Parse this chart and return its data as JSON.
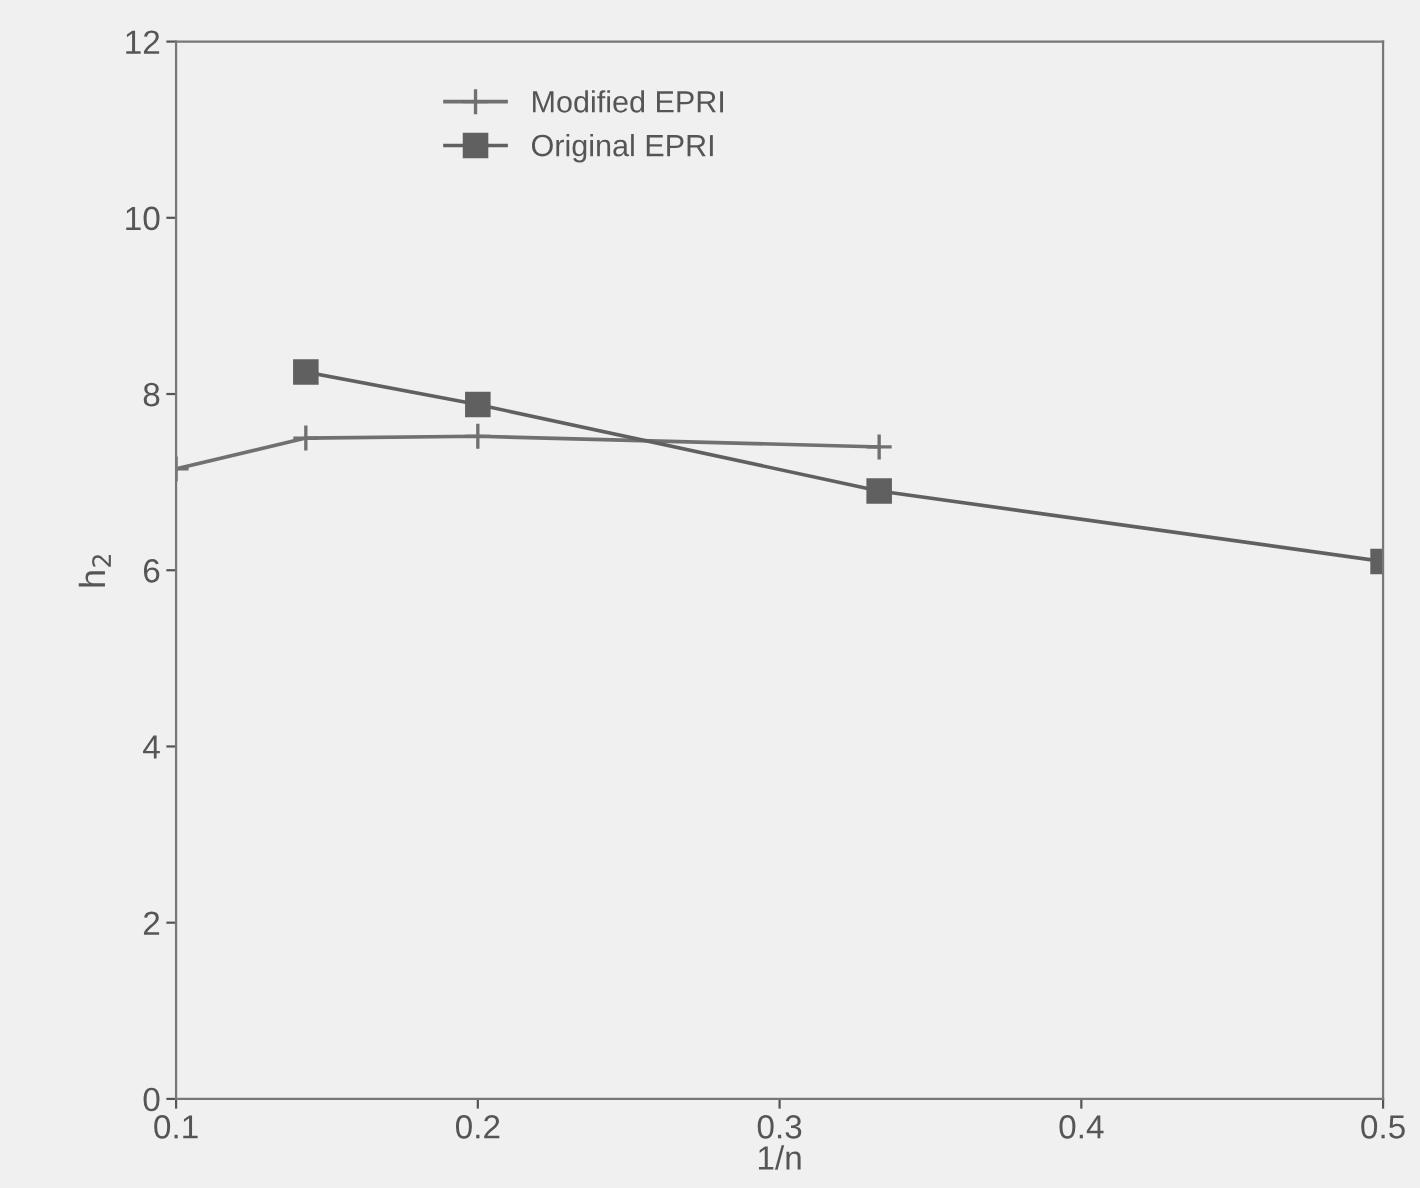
{
  "chart_data": {
    "type": "line",
    "xlabel": "1/n",
    "ylabel": "h$_{2}$",
    "series": [
      {
        "name": "Modified EPRI",
        "color": "#707070",
        "marker": "cross",
        "x": [
          0.1,
          0.143,
          0.2,
          0.333
        ],
        "values": [
          7.15,
          7.5,
          7.52,
          7.4
        ]
      },
      {
        "name": "Original EPRI",
        "color": "#606060",
        "marker": "square",
        "x": [
          0.143,
          0.2,
          0.333,
          0.5
        ],
        "values": [
          8.25,
          7.88,
          6.9,
          6.1
        ]
      }
    ],
    "xlim": [
      0.1,
      0.5
    ],
    "xticks": [
      0.1,
      0.2,
      0.3,
      0.4,
      0.5
    ],
    "ylim": [
      0,
      12
    ],
    "yticks": [
      0,
      2,
      4,
      6,
      8,
      10,
      12
    ],
    "grid": false,
    "legend": "top left",
    "line_style": "solid"
  }
}
